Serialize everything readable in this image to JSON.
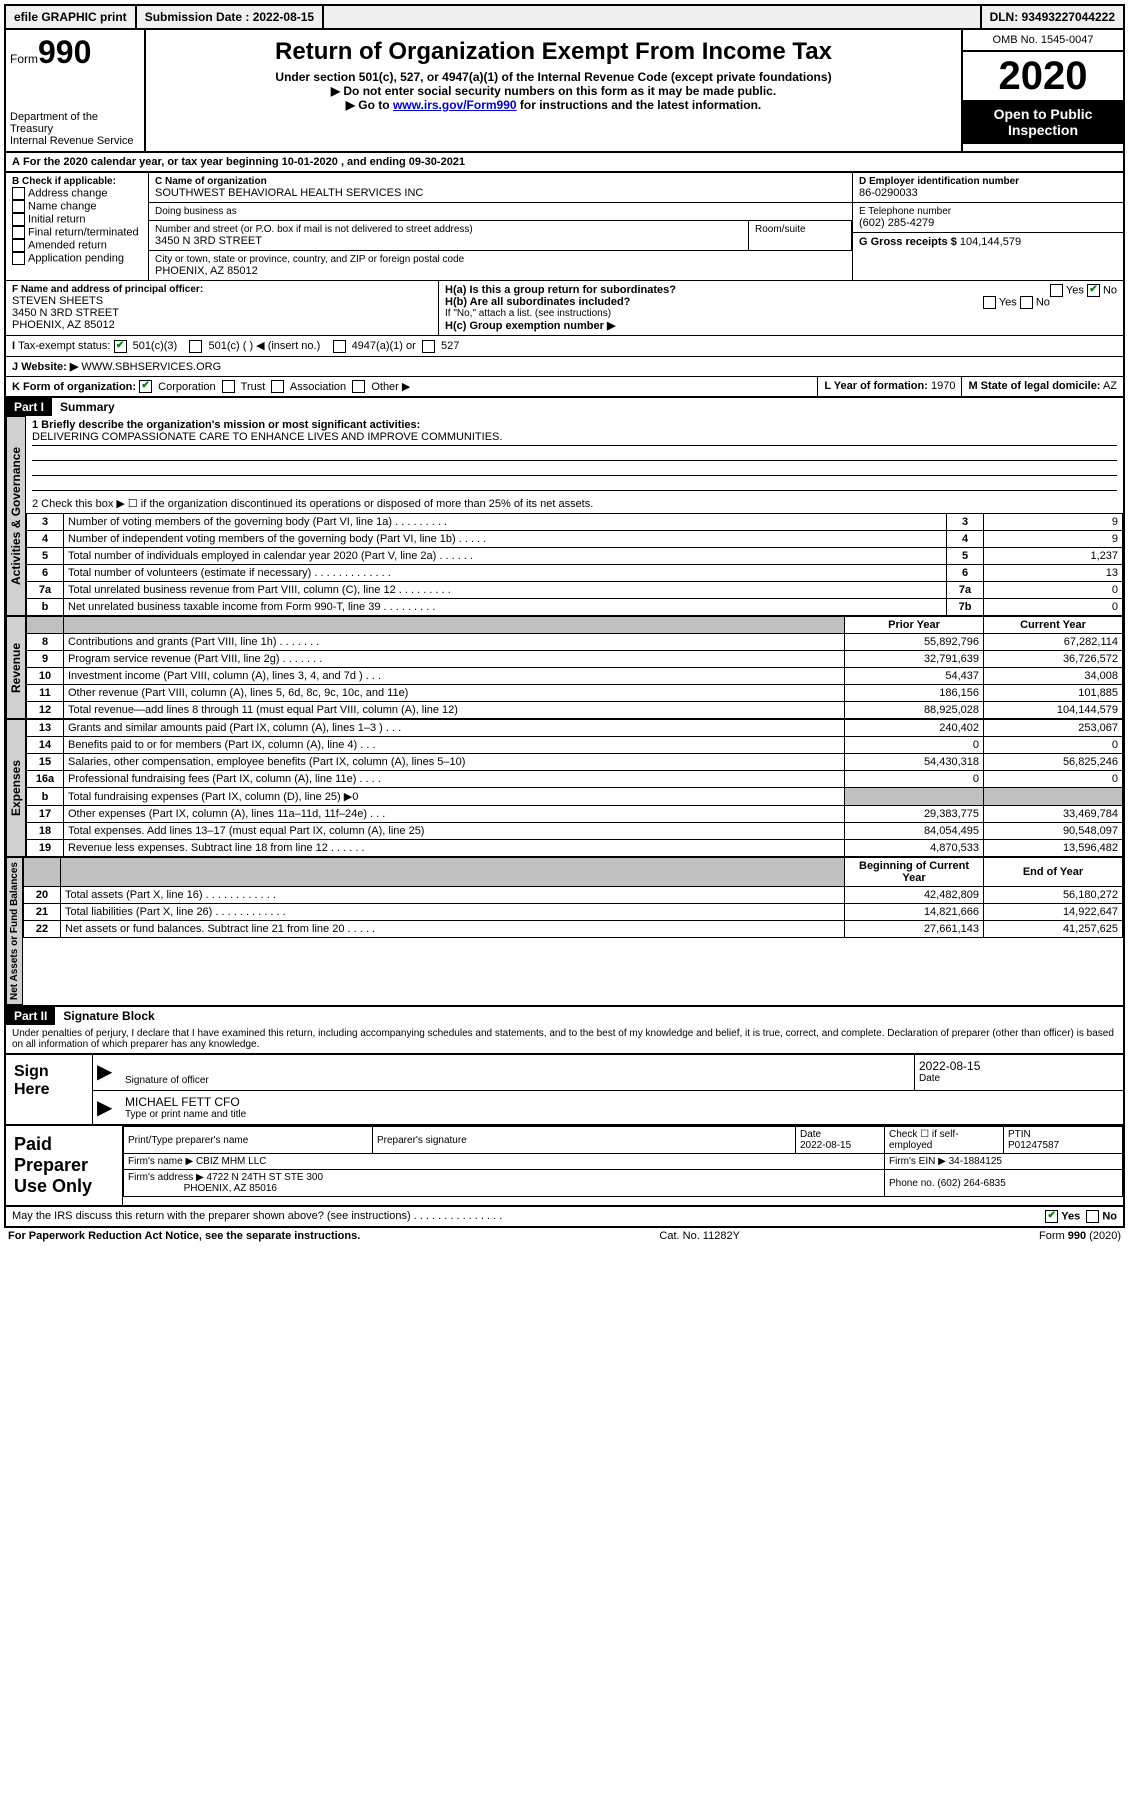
{
  "meta": {
    "efile_label": "efile GRAPHIC print",
    "submission_label": "Submission Date : 2022-08-15",
    "dln_label": "DLN: 93493227044222",
    "omb": "OMB No. 1545-0047",
    "form_word": "Form",
    "form_num": "990",
    "title": "Return of Organization Exempt From Income Tax",
    "subtitle": "Under section 501(c), 527, or 4947(a)(1) of the Internal Revenue Code (except private foundations)",
    "note1": "▶ Do not enter social security numbers on this form as it may be made public.",
    "note2_pre": "▶ Go to ",
    "note2_link": "www.irs.gov/Form990",
    "note2_post": " for instructions and the latest information.",
    "year": "2020",
    "inspection": "Open to Public Inspection",
    "dept": "Department of the Treasury\nInternal Revenue Service"
  },
  "A": {
    "line": "For the 2020 calendar year, or tax year beginning 10-01-2020    , and ending 09-30-2021"
  },
  "B": {
    "label": "B Check if applicable:",
    "items": [
      "Address change",
      "Name change",
      "Initial return",
      "Final return/terminated",
      "Amended return",
      "Application pending"
    ]
  },
  "C": {
    "name_label": "C Name of organization",
    "name": "SOUTHWEST BEHAVIORAL HEALTH SERVICES INC",
    "dba_label": "Doing business as",
    "dba": "",
    "street_label": "Number and street (or P.O. box if mail is not delivered to street address)",
    "room_label": "Room/suite",
    "street": "3450 N 3RD STREET",
    "city_label": "City or town, state or province, country, and ZIP or foreign postal code",
    "city": "PHOENIX, AZ  85012"
  },
  "D": {
    "label": "D Employer identification number",
    "value": "86-0290033"
  },
  "E": {
    "label": "E Telephone number",
    "value": "(602) 285-4279"
  },
  "G": {
    "label": "G Gross receipts $",
    "value": "104,144,579"
  },
  "F": {
    "label": "F Name and address of principal officer:",
    "name": "STEVEN SHEETS",
    "street": "3450 N 3RD STREET",
    "city": "PHOENIX, AZ  85012"
  },
  "H": {
    "a": "H(a)  Is this a group return for subordinates?",
    "b": "H(b)  Are all subordinates included?",
    "b_note": "If \"No,\" attach a list. (see instructions)",
    "c": "H(c)  Group exemption number ▶",
    "yes": "Yes",
    "no": "No"
  },
  "I": {
    "label": "Tax-exempt status:",
    "opt1": "501(c)(3)",
    "opt2": "501(c) (   ) ◀ (insert no.)",
    "opt3": "4947(a)(1) or",
    "opt4": "527"
  },
  "J": {
    "label": "Website: ▶",
    "value": "WWW.SBHSERVICES.ORG"
  },
  "K": {
    "label": "K Form of organization:",
    "opts": [
      "Corporation",
      "Trust",
      "Association",
      "Other ▶"
    ]
  },
  "L": {
    "label": "L Year of formation:",
    "value": "1970"
  },
  "M": {
    "label": "M State of legal domicile:",
    "value": "AZ"
  },
  "part1": {
    "header": "Part I",
    "title": "Summary",
    "line1_label": "1  Briefly describe the organization's mission or most significant activities:",
    "line1_text": "DELIVERING COMPASSIONATE CARE TO ENHANCE LIVES AND IMPROVE COMMUNITIES.",
    "line2": "2   Check this box ▶ ☐  if the organization discontinued its operations or disposed of more than 25% of its net assets.",
    "tabs": {
      "gov": "Activities & Governance",
      "rev": "Revenue",
      "exp": "Expenses",
      "net": "Net Assets or Fund Balances"
    },
    "gov_rows": [
      {
        "n": "3",
        "d": "Number of voting members of the governing body (Part VI, line 1a)   .    .    .    .    .    .    .    .    .",
        "b": "3",
        "v": "9"
      },
      {
        "n": "4",
        "d": "Number of independent voting members of the governing body (Part VI, line 1b)    .    .    .    .    .",
        "b": "4",
        "v": "9"
      },
      {
        "n": "5",
        "d": "Total number of individuals employed in calendar year 2020 (Part V, line 2a)    .    .    .    .    .    .",
        "b": "5",
        "v": "1,237"
      },
      {
        "n": "6",
        "d": "Total number of volunteers (estimate if necessary)    .    .    .    .    .    .    .    .    .    .    .    .    .",
        "b": "6",
        "v": "13"
      },
      {
        "n": "7a",
        "d": "Total unrelated business revenue from Part VIII, column (C), line 12   .    .    .    .    .    .    .    .    .",
        "b": "7a",
        "v": "0"
      },
      {
        "n": "b",
        "d": "Net unrelated business taxable income from Form 990-T, line 39    .    .    .    .    .    .    .    .    .",
        "b": "7b",
        "v": "0"
      }
    ],
    "col_prior": "Prior Year",
    "col_current": "Current Year",
    "rev_rows": [
      {
        "n": "8",
        "d": "Contributions and grants (Part VIII, line 1h)    .    .    .    .    .    .    .",
        "p": "55,892,796",
        "c": "67,282,114"
      },
      {
        "n": "9",
        "d": "Program service revenue (Part VIII, line 2g)    .    .    .    .    .    .    .",
        "p": "32,791,639",
        "c": "36,726,572"
      },
      {
        "n": "10",
        "d": "Investment income (Part VIII, column (A), lines 3, 4, and 7d )    .    .    .",
        "p": "54,437",
        "c": "34,008"
      },
      {
        "n": "11",
        "d": "Other revenue (Part VIII, column (A), lines 5, 6d, 8c, 9c, 10c, and 11e)",
        "p": "186,156",
        "c": "101,885"
      },
      {
        "n": "12",
        "d": "Total revenue—add lines 8 through 11 (must equal Part VIII, column (A), line 12)",
        "p": "88,925,028",
        "c": "104,144,579"
      }
    ],
    "exp_rows": [
      {
        "n": "13",
        "d": "Grants and similar amounts paid (Part IX, column (A), lines 1–3 )    .    .    .",
        "p": "240,402",
        "c": "253,067"
      },
      {
        "n": "14",
        "d": "Benefits paid to or for members (Part IX, column (A), line 4)    .    .    .",
        "p": "0",
        "c": "0"
      },
      {
        "n": "15",
        "d": "Salaries, other compensation, employee benefits (Part IX, column (A), lines 5–10)",
        "p": "54,430,318",
        "c": "56,825,246"
      },
      {
        "n": "16a",
        "d": "Professional fundraising fees (Part IX, column (A), line 11e)    .    .    .    .",
        "p": "0",
        "c": "0"
      },
      {
        "n": "b",
        "d": "Total fundraising expenses (Part IX, column (D), line 25) ▶0",
        "p": "",
        "c": "",
        "shade": true
      },
      {
        "n": "17",
        "d": "Other expenses (Part IX, column (A), lines 11a–11d, 11f–24e)    .    .    .",
        "p": "29,383,775",
        "c": "33,469,784"
      },
      {
        "n": "18",
        "d": "Total expenses. Add lines 13–17 (must equal Part IX, column (A), line 25)",
        "p": "84,054,495",
        "c": "90,548,097"
      },
      {
        "n": "19",
        "d": "Revenue less expenses. Subtract line 18 from line 12   .    .    .    .    .    .",
        "p": "4,870,533",
        "c": "13,596,482"
      }
    ],
    "col_beg": "Beginning of Current Year",
    "col_end": "End of Year",
    "net_rows": [
      {
        "n": "20",
        "d": "Total assets (Part X, line 16)    .    .    .    .    .    .    .    .    .    .    .    .",
        "p": "42,482,809",
        "c": "56,180,272"
      },
      {
        "n": "21",
        "d": "Total liabilities (Part X, line 26)   .    .    .    .    .    .    .    .    .    .    .    .",
        "p": "14,821,666",
        "c": "14,922,647"
      },
      {
        "n": "22",
        "d": "Net assets or fund balances. Subtract line 21 from line 20   .    .    .    .    .",
        "p": "27,661,143",
        "c": "41,257,625"
      }
    ]
  },
  "part2": {
    "header": "Part II",
    "title": "Signature Block",
    "perjury": "Under penalties of perjury, I declare that I have examined this return, including accompanying schedules and statements, and to the best of my knowledge and belief, it is true, correct, and complete. Declaration of preparer (other than officer) is based on all information of which preparer has any knowledge.",
    "sign_here": "Sign Here",
    "sig_officer": "Signature of officer",
    "date_label": "Date",
    "date_val": "2022-08-15",
    "officer_name": "MICHAEL FETT CFO",
    "type_name": "Type or print name and title",
    "paid": "Paid Preparer Use Only",
    "prep_name_label": "Print/Type preparer's name",
    "prep_sig_label": "Preparer's signature",
    "prep_date": "2022-08-15",
    "self_emp": "Check ☐ if self-employed",
    "ptin_label": "PTIN",
    "ptin": "P01247587",
    "firm_name_label": "Firm's name    ▶",
    "firm_name": "CBIZ MHM LLC",
    "firm_ein_label": "Firm's EIN ▶",
    "firm_ein": "34-1884125",
    "firm_addr_label": "Firm's address ▶",
    "firm_addr1": "4722 N 24TH ST STE 300",
    "firm_addr2": "PHOENIX, AZ  85016",
    "phone_label": "Phone no.",
    "phone": "(602) 264-6835",
    "discuss": "May the IRS discuss this return with the preparer shown above? (see instructions)    .    .    .    .    .    .    .    .    .    .    .    .    .    .    ."
  },
  "footer": {
    "left": "For Paperwork Reduction Act Notice, see the separate instructions.",
    "mid": "Cat. No. 11282Y",
    "right": "Form 990 (2020)"
  }
}
